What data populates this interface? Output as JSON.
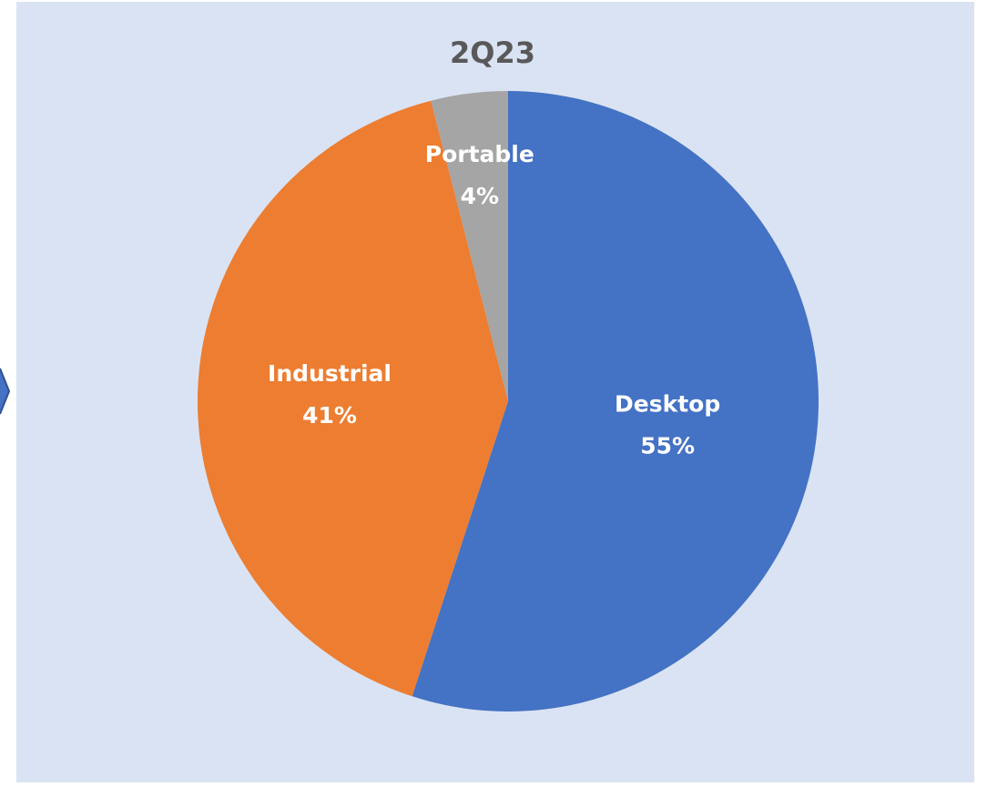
{
  "chart_data": {
    "type": "pie",
    "title": "2Q23",
    "categories": [
      "Desktop",
      "Industrial",
      "Portable"
    ],
    "values": [
      55,
      41,
      4
    ],
    "value_labels": [
      "55%",
      "41%",
      "4%"
    ],
    "colors": [
      "#4472c4",
      "#ed7d31",
      "#a5a5a5"
    ]
  }
}
